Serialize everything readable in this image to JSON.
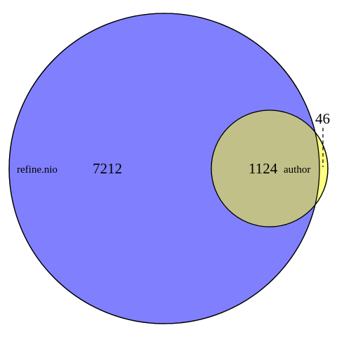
{
  "venn": {
    "sets": [
      {
        "name": "refine.nio",
        "color": "#8080FF"
      },
      {
        "name": "author",
        "color": "#FFFF80"
      }
    ],
    "regions": {
      "refine_only": "7212",
      "intersection": "1124",
      "author_only": "46"
    },
    "intersection_color": "#C0C088",
    "outline_color": "#000000"
  }
}
